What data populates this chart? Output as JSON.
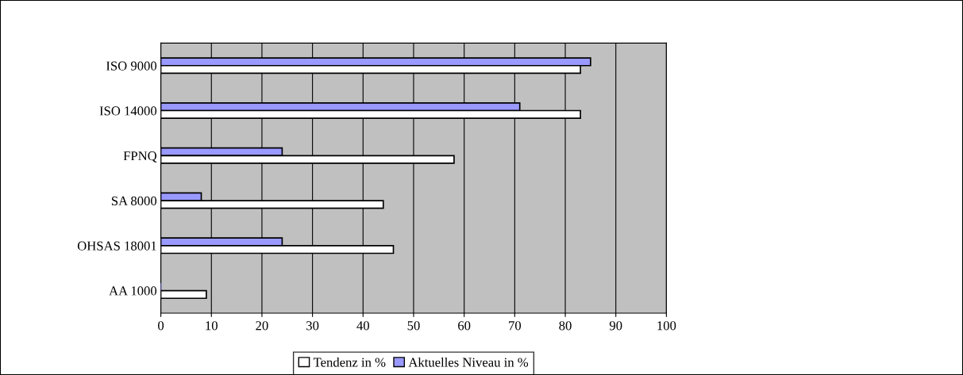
{
  "chart_data": {
    "type": "bar",
    "orientation": "horizontal",
    "categories": [
      "ISO 9000",
      "ISO 14000",
      "FPNQ",
      "SA 8000",
      "OHSAS 18001",
      "AA 1000"
    ],
    "series": [
      {
        "name": "Aktuelles Niveau in %",
        "color": "#9999ff",
        "values": [
          85,
          71,
          24,
          8,
          24,
          0
        ]
      },
      {
        "name": "Tendenz in %",
        "color": "#ffffff",
        "values": [
          83,
          83,
          58,
          44,
          46,
          9
        ]
      }
    ],
    "xlim": [
      0,
      100
    ],
    "xticks": [
      0,
      10,
      20,
      30,
      40,
      50,
      60,
      70,
      80,
      90,
      100
    ],
    "grid": "x",
    "legend": "bottom"
  }
}
